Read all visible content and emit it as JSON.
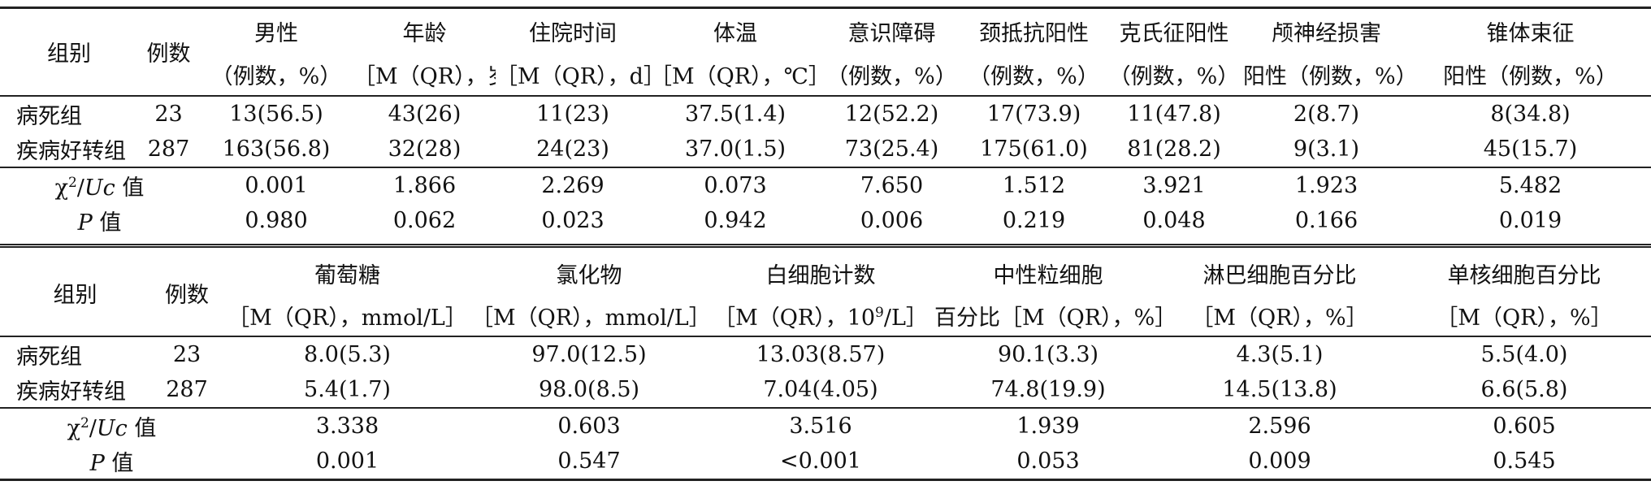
{
  "table1": {
    "group_header": "组别",
    "count_header": "例数",
    "columns": [
      {
        "line1": "男性",
        "line2": "（例数，%）"
      },
      {
        "line1": "年龄",
        "line2": "［M（QR），岁］"
      },
      {
        "line1": "住院时间",
        "line2": "［M（QR），d］"
      },
      {
        "line1": "体温",
        "line2": "［M（QR），℃］"
      },
      {
        "line1": "意识障碍",
        "line2": "（例数，%）"
      },
      {
        "line1": "颈抵抗阳性",
        "line2": "（例数，%）"
      },
      {
        "line1": "克氏征阳性",
        "line2": "（例数，%）"
      },
      {
        "line1": "颅神经损害",
        "line2": "阳性（例数，%）"
      },
      {
        "line1": "锥体束征",
        "line2": "阳性（例数，%）"
      }
    ],
    "rows": [
      {
        "group": "病死组",
        "count": "23",
        "values": [
          "13(56.5)",
          "43(26)",
          "11(23)",
          "37.5(1.4)",
          "12(52.2)",
          "17(73.9)",
          "11(47.8)",
          "2(8.7)",
          "8(34.8)"
        ]
      },
      {
        "group": "疾病好转组",
        "count": "287",
        "values": [
          "163(56.8)",
          "32(28)",
          "24(23)",
          "37.0(1.5)",
          "73(25.4)",
          "175(61.0)",
          "81(28.2)",
          "9(3.1)",
          "45(15.7)"
        ]
      }
    ],
    "stat_label": "值",
    "stat_values": [
      "0.001",
      "1.866",
      "2.269",
      "0.073",
      "7.650",
      "1.512",
      "3.921",
      "1.923",
      "5.482"
    ],
    "p_label": "值",
    "p_values": [
      "0.980",
      "0.062",
      "0.023",
      "0.942",
      "0.006",
      "0.219",
      "0.048",
      "0.166",
      "0.019"
    ]
  },
  "table2": {
    "group_header": "组别",
    "count_header": "例数",
    "columns": [
      {
        "line1": "葡萄糖",
        "line2": "［M（QR），mmol/L］"
      },
      {
        "line1": "氯化物",
        "line2": "［M（QR），mmol/L］"
      },
      {
        "line1": "白细胞计数",
        "line2_pre": "［M（QR），10",
        "line2_sup": "9",
        "line2_post": "/L］"
      },
      {
        "line1": "中性粒细胞",
        "line2": "百分比［M（QR），%］"
      },
      {
        "line1": "淋巴细胞百分比",
        "line2": "［M（QR），%］"
      },
      {
        "line1": "单核细胞百分比",
        "line2": "［M（QR），%］"
      }
    ],
    "rows": [
      {
        "group": "病死组",
        "count": "23",
        "values": [
          "8.0(5.3)",
          "97.0(12.5)",
          "13.03(8.57)",
          "90.1(3.3)",
          "4.3(5.1)",
          "5.5(4.0)"
        ]
      },
      {
        "group": "疾病好转组",
        "count": "287",
        "values": [
          "5.4(1.7)",
          "98.0(8.5)",
          "7.04(4.05)",
          "74.8(19.9)",
          "14.5(13.8)",
          "6.6(5.8)"
        ]
      }
    ],
    "stat_label": "值",
    "stat_values": [
      "3.338",
      "0.603",
      "3.516",
      "1.939",
      "2.596",
      "0.605"
    ],
    "p_label": "值",
    "p_values": [
      "0.001",
      "0.547",
      "<0.001",
      "0.053",
      "0.009",
      "0.545"
    ]
  },
  "symbols": {
    "chi": "χ",
    "chi_sup": "2",
    "slash": "/",
    "uc": "Uc",
    "p": "P"
  }
}
